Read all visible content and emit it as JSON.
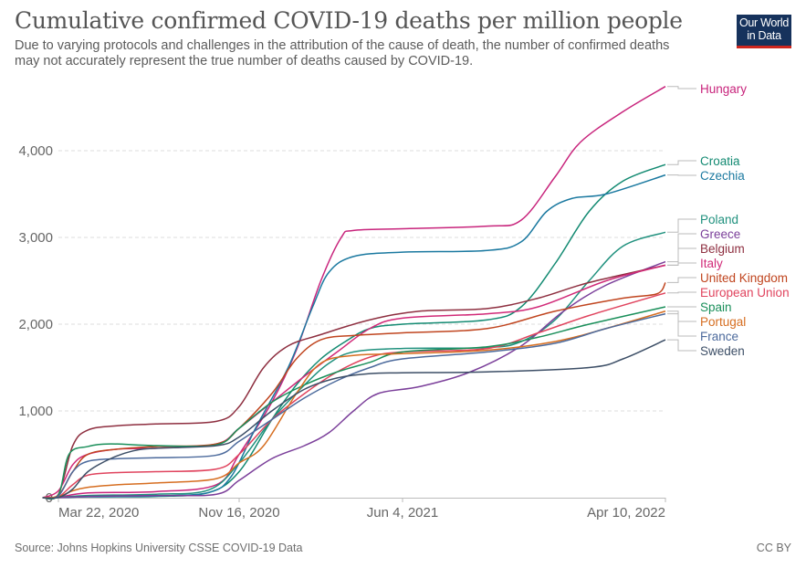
{
  "header": {
    "title": "Cumulative confirmed COVID-19 deaths per million people",
    "subtitle_line1": "Due to varying protocols and challenges in the attribution of the cause of death, the number of confirmed deaths",
    "subtitle_line2": "may not accurately represent the true number of deaths caused by COVID-19.",
    "logo_line1": "Our World",
    "logo_line2": "in Data"
  },
  "footer": {
    "source": "Source: Johns Hopkins University CSSE COVID-19 Data",
    "license": "CC BY"
  },
  "chart_data": {
    "type": "line",
    "title": "Cumulative confirmed COVID-19 deaths per million people",
    "xlabel": "",
    "ylabel": "",
    "x_unit": "days since 2020-03-01",
    "xlim": [
      0,
      770
    ],
    "ylim": [
      0,
      4800
    ],
    "x_ticks": [
      {
        "label": "Mar 22, 2020",
        "x": 21
      },
      {
        "label": "Nov 16, 2020",
        "x": 260
      },
      {
        "label": "Jun 4, 2021",
        "x": 460
      },
      {
        "label": "Apr 10, 2022",
        "x": 770
      }
    ],
    "y_ticks": [
      {
        "label": "0",
        "y": 0
      },
      {
        "label": "1,000",
        "y": 1000
      },
      {
        "label": "2,000",
        "y": 2000
      },
      {
        "label": "3,000",
        "y": 3000
      },
      {
        "label": "4,000",
        "y": 4000
      }
    ],
    "grid": true,
    "legend": "right (line-end labels)",
    "series": [
      {
        "name": "Hungary",
        "color": "#c8247c",
        "points": [
          [
            0,
            0
          ],
          [
            21,
            5
          ],
          [
            60,
            55
          ],
          [
            150,
            70
          ],
          [
            230,
            150
          ],
          [
            260,
            500
          ],
          [
            300,
            1100
          ],
          [
            330,
            1700
          ],
          [
            360,
            2500
          ],
          [
            385,
            3000
          ],
          [
            400,
            3080
          ],
          [
            460,
            3100
          ],
          [
            560,
            3130
          ],
          [
            600,
            3200
          ],
          [
            640,
            3700
          ],
          [
            670,
            4100
          ],
          [
            720,
            4450
          ],
          [
            770,
            4740
          ]
        ]
      },
      {
        "name": "Croatia",
        "color": "#138a72",
        "points": [
          [
            0,
            0
          ],
          [
            21,
            2
          ],
          [
            60,
            10
          ],
          [
            150,
            15
          ],
          [
            220,
            60
          ],
          [
            260,
            300
          ],
          [
            300,
            900
          ],
          [
            330,
            1300
          ],
          [
            360,
            1600
          ],
          [
            390,
            1800
          ],
          [
            420,
            1950
          ],
          [
            460,
            2000
          ],
          [
            560,
            2050
          ],
          [
            600,
            2200
          ],
          [
            640,
            2700
          ],
          [
            680,
            3300
          ],
          [
            720,
            3650
          ],
          [
            770,
            3840
          ]
        ]
      },
      {
        "name": "Czechia",
        "color": "#1b79a0",
        "points": [
          [
            0,
            0
          ],
          [
            21,
            2
          ],
          [
            60,
            10
          ],
          [
            150,
            20
          ],
          [
            220,
            60
          ],
          [
            250,
            250
          ],
          [
            280,
            800
          ],
          [
            320,
            1500
          ],
          [
            350,
            2200
          ],
          [
            370,
            2600
          ],
          [
            400,
            2780
          ],
          [
            460,
            2830
          ],
          [
            560,
            2850
          ],
          [
            600,
            2950
          ],
          [
            630,
            3300
          ],
          [
            660,
            3450
          ],
          [
            700,
            3500
          ],
          [
            770,
            3720
          ]
        ]
      },
      {
        "name": "Poland",
        "color": "#20917e",
        "points": [
          [
            0,
            0
          ],
          [
            21,
            5
          ],
          [
            60,
            25
          ],
          [
            150,
            40
          ],
          [
            220,
            90
          ],
          [
            260,
            400
          ],
          [
            300,
            900
          ],
          [
            340,
            1300
          ],
          [
            370,
            1550
          ],
          [
            400,
            1680
          ],
          [
            460,
            1720
          ],
          [
            560,
            1730
          ],
          [
            600,
            1800
          ],
          [
            640,
            2050
          ],
          [
            680,
            2500
          ],
          [
            720,
            2900
          ],
          [
            770,
            3060
          ]
        ]
      },
      {
        "name": "Greece",
        "color": "#7b3f9a",
        "points": [
          [
            0,
            0
          ],
          [
            21,
            1
          ],
          [
            60,
            15
          ],
          [
            150,
            25
          ],
          [
            230,
            40
          ],
          [
            260,
            200
          ],
          [
            300,
            450
          ],
          [
            340,
            600
          ],
          [
            370,
            750
          ],
          [
            400,
            1000
          ],
          [
            430,
            1200
          ],
          [
            480,
            1280
          ],
          [
            540,
            1450
          ],
          [
            600,
            1750
          ],
          [
            650,
            2150
          ],
          [
            700,
            2450
          ],
          [
            770,
            2720
          ]
        ]
      },
      {
        "name": "Belgium",
        "color": "#8e2f40",
        "points": [
          [
            0,
            0
          ],
          [
            21,
            40
          ],
          [
            40,
            600
          ],
          [
            60,
            780
          ],
          [
            100,
            830
          ],
          [
            150,
            850
          ],
          [
            230,
            880
          ],
          [
            260,
            1050
          ],
          [
            290,
            1500
          ],
          [
            320,
            1750
          ],
          [
            360,
            1880
          ],
          [
            420,
            2050
          ],
          [
            480,
            2150
          ],
          [
            560,
            2180
          ],
          [
            620,
            2300
          ],
          [
            680,
            2480
          ],
          [
            770,
            2680
          ]
        ]
      },
      {
        "name": "Italy",
        "color": "#d12a78",
        "points": [
          [
            0,
            0
          ],
          [
            21,
            80
          ],
          [
            40,
            380
          ],
          [
            60,
            500
          ],
          [
            100,
            560
          ],
          [
            150,
            570
          ],
          [
            230,
            620
          ],
          [
            260,
            800
          ],
          [
            300,
            1100
          ],
          [
            340,
            1400
          ],
          [
            380,
            1680
          ],
          [
            420,
            1950
          ],
          [
            460,
            2070
          ],
          [
            560,
            2120
          ],
          [
            620,
            2200
          ],
          [
            700,
            2500
          ],
          [
            770,
            2680
          ]
        ]
      },
      {
        "name": "United Kingdom",
        "color": "#c0451f",
        "points": [
          [
            0,
            0
          ],
          [
            21,
            30
          ],
          [
            40,
            300
          ],
          [
            60,
            500
          ],
          [
            100,
            560
          ],
          [
            150,
            590
          ],
          [
            230,
            620
          ],
          [
            260,
            800
          ],
          [
            300,
            1200
          ],
          [
            330,
            1600
          ],
          [
            360,
            1820
          ],
          [
            400,
            1870
          ],
          [
            460,
            1900
          ],
          [
            560,
            1950
          ],
          [
            640,
            2150
          ],
          [
            720,
            2300
          ],
          [
            760,
            2350
          ],
          [
            770,
            2480
          ]
        ]
      },
      {
        "name": "European Union",
        "color": "#e0445e",
        "points": [
          [
            0,
            0
          ],
          [
            21,
            10
          ],
          [
            40,
            150
          ],
          [
            60,
            260
          ],
          [
            100,
            290
          ],
          [
            150,
            300
          ],
          [
            230,
            330
          ],
          [
            260,
            500
          ],
          [
            300,
            900
          ],
          [
            340,
            1200
          ],
          [
            380,
            1450
          ],
          [
            420,
            1620
          ],
          [
            460,
            1680
          ],
          [
            560,
            1720
          ],
          [
            620,
            1900
          ],
          [
            680,
            2100
          ],
          [
            770,
            2360
          ]
        ]
      },
      {
        "name": "Spain",
        "color": "#1a8f5a",
        "points": [
          [
            0,
            0
          ],
          [
            21,
            30
          ],
          [
            35,
            500
          ],
          [
            60,
            590
          ],
          [
            90,
            620
          ],
          [
            150,
            600
          ],
          [
            230,
            610
          ],
          [
            260,
            800
          ],
          [
            300,
            1100
          ],
          [
            340,
            1300
          ],
          [
            380,
            1450
          ],
          [
            420,
            1560
          ],
          [
            460,
            1680
          ],
          [
            560,
            1740
          ],
          [
            620,
            1850
          ],
          [
            680,
            2000
          ],
          [
            770,
            2200
          ]
        ]
      },
      {
        "name": "Portugal",
        "color": "#d66e21",
        "points": [
          [
            0,
            0
          ],
          [
            21,
            10
          ],
          [
            40,
            80
          ],
          [
            60,
            120
          ],
          [
            100,
            150
          ],
          [
            150,
            170
          ],
          [
            230,
            220
          ],
          [
            260,
            400
          ],
          [
            290,
            600
          ],
          [
            330,
            1200
          ],
          [
            360,
            1550
          ],
          [
            400,
            1640
          ],
          [
            460,
            1660
          ],
          [
            560,
            1700
          ],
          [
            640,
            1800
          ],
          [
            700,
            1950
          ],
          [
            770,
            2150
          ]
        ]
      },
      {
        "name": "France",
        "color": "#4c6a9c",
        "points": [
          [
            0,
            0
          ],
          [
            21,
            20
          ],
          [
            40,
            300
          ],
          [
            60,
            420
          ],
          [
            100,
            450
          ],
          [
            150,
            460
          ],
          [
            230,
            490
          ],
          [
            260,
            650
          ],
          [
            300,
            900
          ],
          [
            340,
            1150
          ],
          [
            380,
            1350
          ],
          [
            420,
            1500
          ],
          [
            460,
            1600
          ],
          [
            560,
            1680
          ],
          [
            640,
            1780
          ],
          [
            700,
            1950
          ],
          [
            770,
            2120
          ]
        ]
      },
      {
        "name": "Sweden",
        "color": "#3c4e66",
        "points": [
          [
            0,
            0
          ],
          [
            21,
            2
          ],
          [
            40,
            100
          ],
          [
            60,
            300
          ],
          [
            90,
            450
          ],
          [
            120,
            540
          ],
          [
            150,
            570
          ],
          [
            230,
            600
          ],
          [
            260,
            700
          ],
          [
            300,
            1000
          ],
          [
            340,
            1250
          ],
          [
            380,
            1380
          ],
          [
            420,
            1430
          ],
          [
            460,
            1440
          ],
          [
            560,
            1450
          ],
          [
            680,
            1500
          ],
          [
            720,
            1600
          ],
          [
            770,
            1820
          ]
        ]
      }
    ]
  }
}
